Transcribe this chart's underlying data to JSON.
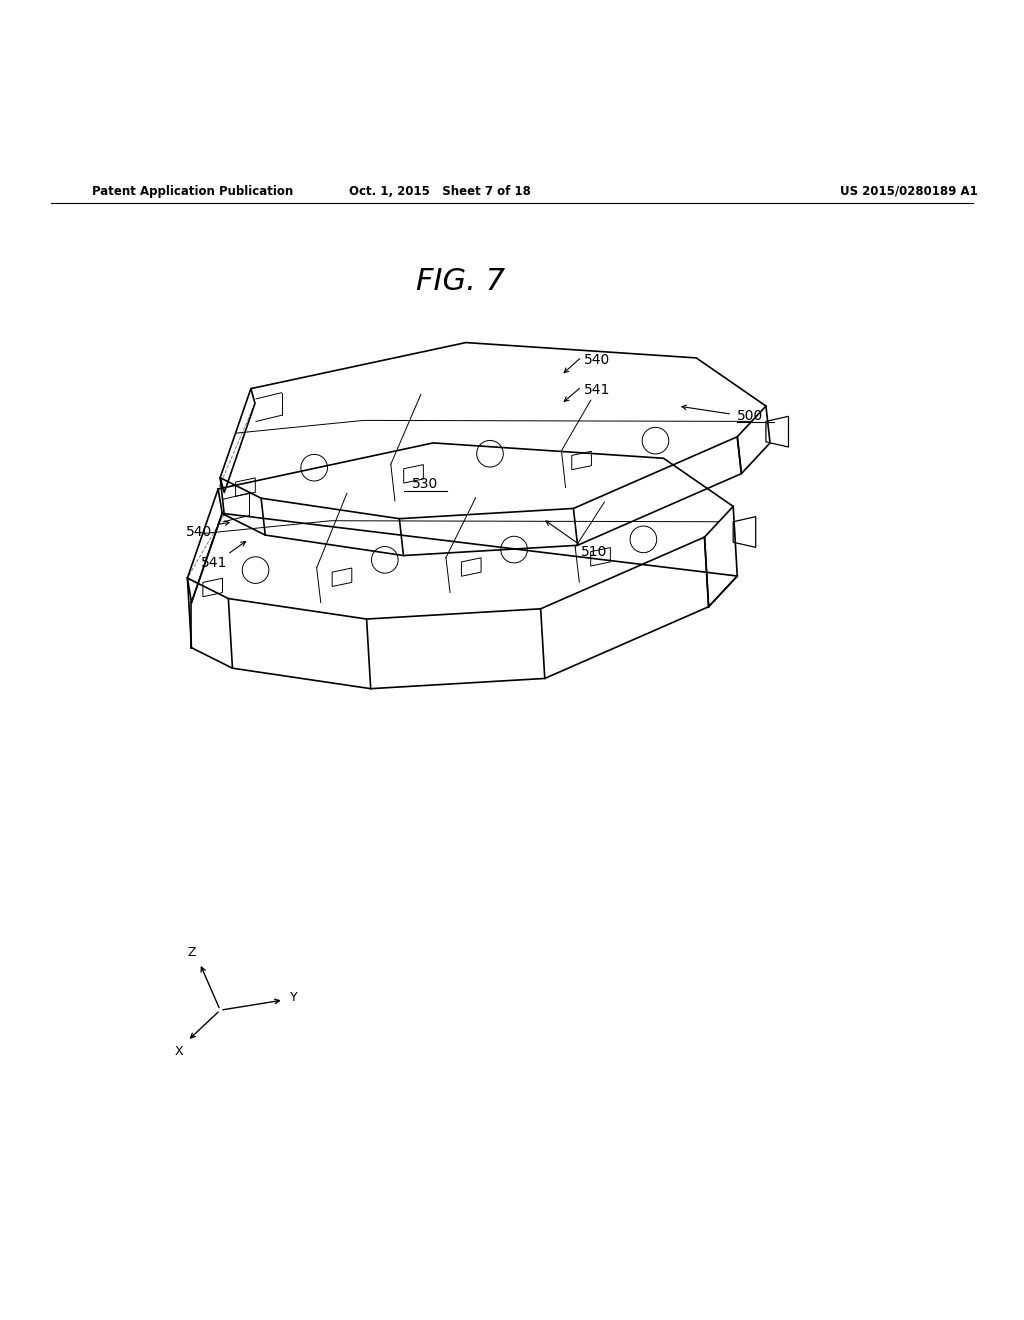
{
  "background_color": "#ffffff",
  "header_left": "Patent Application Publication",
  "header_center": "Oct. 1, 2015   Sheet 7 of 18",
  "header_right": "US 2015/0280189 A1",
  "figure_title": "FIG. 7",
  "label_fontsize": 10,
  "header_fontsize": 8.5,
  "title_fontsize": 22
}
